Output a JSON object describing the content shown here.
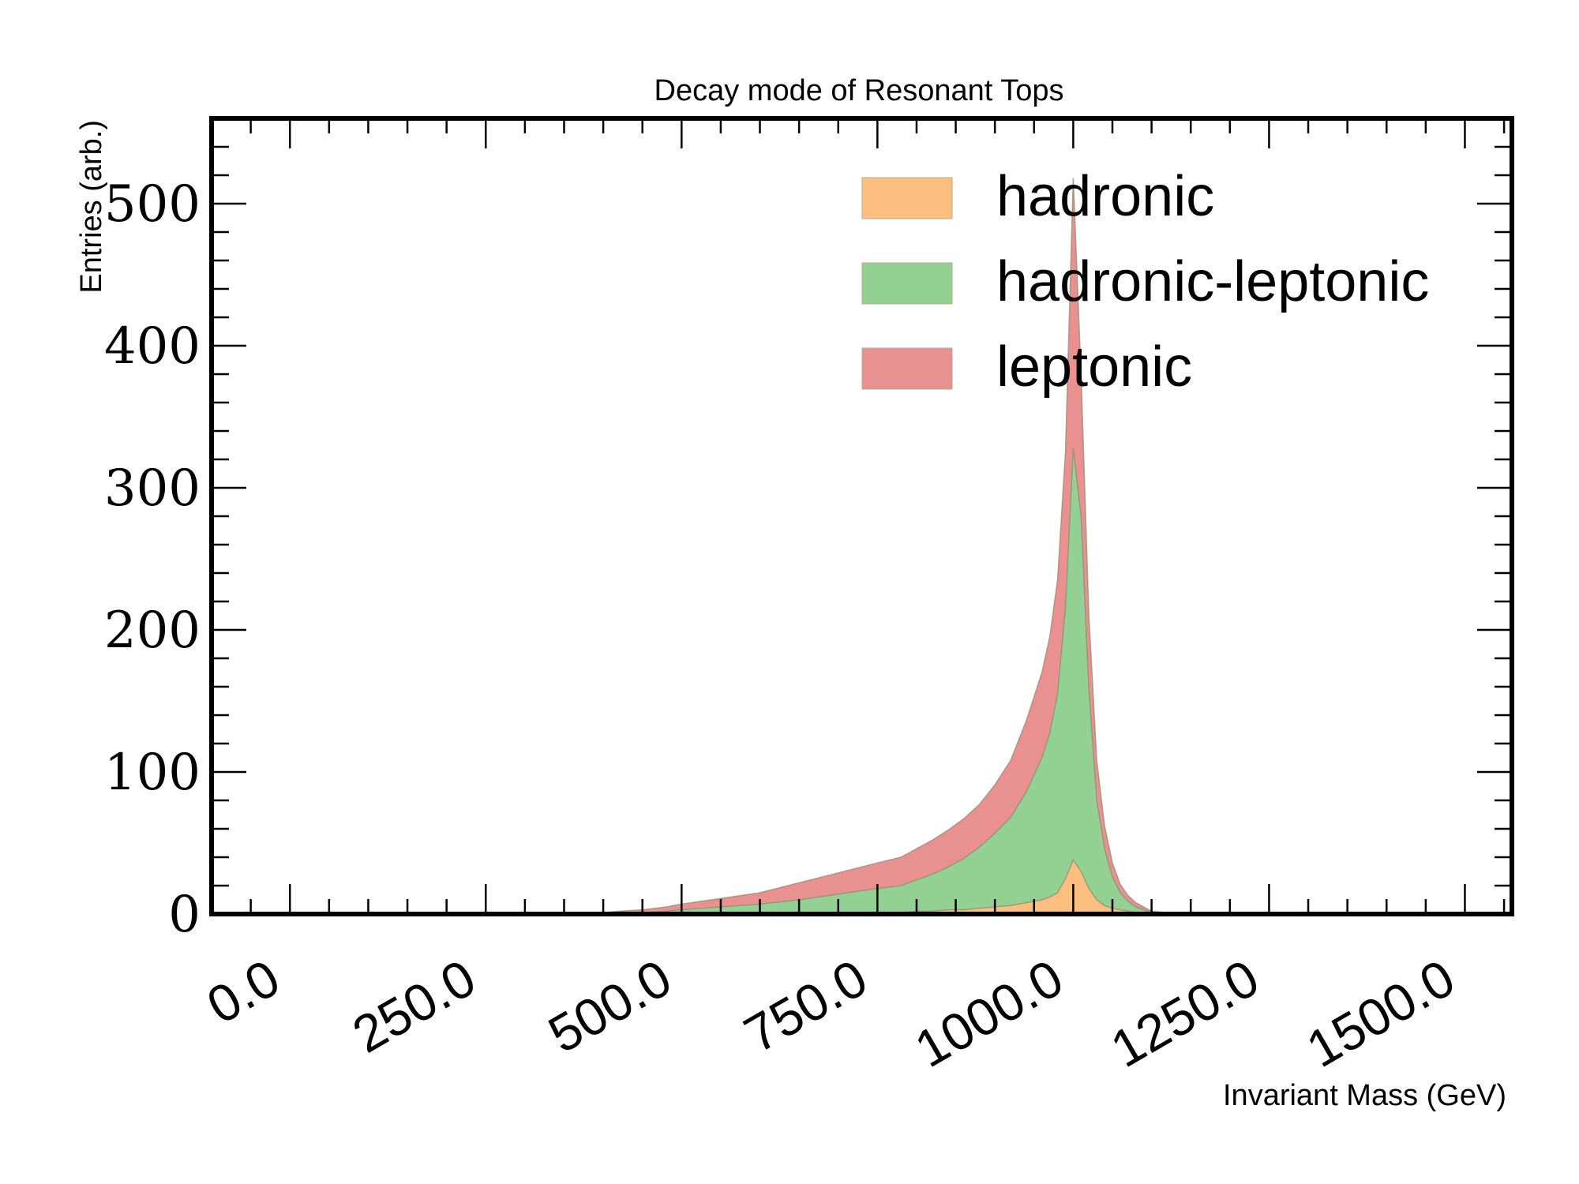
{
  "chart_data": {
    "type": "area",
    "title": "Decay mode of Resonant Tops",
    "xlabel": "Invariant Mass (GeV)",
    "ylabel": "Entries (arb.)",
    "xlim": [
      -100,
      1560
    ],
    "ylim": [
      0,
      560
    ],
    "xticks": [
      0.0,
      250.0,
      500.0,
      750.0,
      1000.0,
      1250.0,
      1500.0
    ],
    "xtick_labels": [
      "0.0",
      "250.0",
      "500.0",
      "750.0",
      "1000.0",
      "1250.0",
      "1500.0"
    ],
    "yticks": [
      0,
      100,
      200,
      300,
      400,
      500
    ],
    "ytick_labels": [
      "0",
      "100",
      "200",
      "300",
      "400",
      "500"
    ],
    "stacked": true,
    "histtype": "stepfilled",
    "legend_position": "top-right",
    "x": [
      380,
      420,
      450,
      480,
      500,
      550,
      600,
      650,
      700,
      750,
      780,
      800,
      820,
      840,
      860,
      880,
      900,
      920,
      940,
      960,
      970,
      980,
      990,
      1000,
      1010,
      1020,
      1030,
      1040,
      1050,
      1060,
      1070,
      1080,
      1090,
      1100,
      1120,
      1150,
      1200,
      1250,
      1300,
      1350,
      1400
    ],
    "series": [
      {
        "name": "hadronic",
        "color": "#fdbf80",
        "values": [
          0,
          0,
          0,
          0,
          0,
          0,
          0,
          0,
          1,
          1,
          1,
          2,
          2,
          3,
          3,
          4,
          5,
          6,
          8,
          10,
          12,
          15,
          25,
          38,
          30,
          18,
          10,
          6,
          4,
          3,
          2,
          1,
          1,
          0,
          0,
          0,
          0,
          0,
          0,
          0,
          0
        ]
      },
      {
        "name": "hadronic-leptonic",
        "color": "#93d094",
        "values": [
          0,
          1,
          1,
          2,
          3,
          5,
          7,
          10,
          13,
          17,
          19,
          22,
          26,
          30,
          36,
          43,
          52,
          62,
          78,
          100,
          115,
          140,
          190,
          290,
          250,
          140,
          70,
          40,
          22,
          12,
          7,
          4,
          2,
          1,
          0,
          0,
          0,
          0,
          0,
          0,
          0
        ]
      },
      {
        "name": "leptonic",
        "color": "#e99190",
        "values": [
          0,
          1,
          2,
          3,
          4,
          6,
          8,
          12,
          15,
          18,
          20,
          22,
          24,
          26,
          28,
          30,
          34,
          40,
          50,
          60,
          68,
          80,
          110,
          190,
          100,
          52,
          28,
          16,
          10,
          6,
          4,
          3,
          2,
          1,
          1,
          0,
          0,
          0,
          0,
          0,
          0
        ]
      }
    ]
  }
}
